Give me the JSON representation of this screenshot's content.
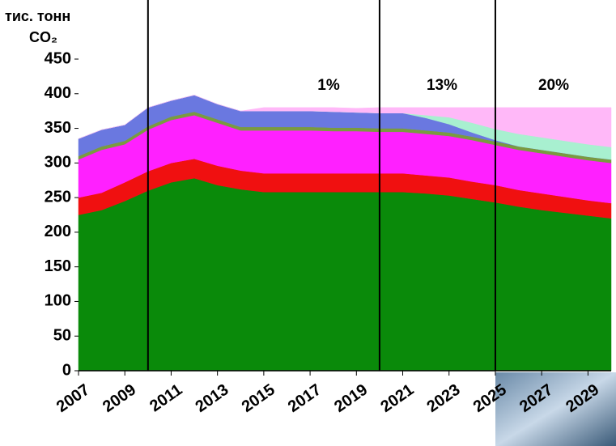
{
  "chart_data": {
    "type": "stacked_area",
    "y_label": [
      "тис. тонн",
      "CO₂"
    ],
    "x": [
      2007,
      2008,
      2009,
      2010,
      2011,
      2012,
      2013,
      2014,
      2015,
      2016,
      2017,
      2018,
      2019,
      2020,
      2021,
      2022,
      2023,
      2024,
      2025,
      2026,
      2027,
      2028,
      2029,
      2030
    ],
    "xlim": [
      2007,
      2030
    ],
    "xticks": [
      2007,
      2009,
      2011,
      2013,
      2015,
      2017,
      2019,
      2021,
      2023,
      2025,
      2027,
      2029
    ],
    "ylim": [
      0,
      450
    ],
    "yticks": [
      0,
      50,
      100,
      150,
      200,
      250,
      300,
      350,
      400,
      450
    ],
    "markers": [
      2010,
      2020,
      2025
    ],
    "annotations": [
      "1%",
      "13%",
      "20%"
    ],
    "series": [
      {
        "color": "#0a8a0a",
        "values": [
          225,
          232,
          245,
          260,
          272,
          278,
          268,
          262,
          258,
          258,
          258,
          258,
          258,
          258,
          258,
          256,
          253,
          248,
          243,
          237,
          232,
          228,
          224,
          220
        ]
      },
      {
        "color": "#f01010",
        "values": [
          25,
          25,
          27,
          28,
          28,
          28,
          28,
          27,
          27,
          27,
          27,
          27,
          27,
          27,
          27,
          26,
          26,
          25,
          25,
          24,
          24,
          23,
          22,
          22
        ]
      },
      {
        "color": "#ff20ff",
        "values": [
          55,
          62,
          55,
          60,
          62,
          63,
          62,
          58,
          62,
          62,
          62,
          61,
          61,
          60,
          60,
          60,
          60,
          60,
          58,
          58,
          58,
          58,
          58,
          58
        ]
      },
      {
        "color": "#7a9a40",
        "values": [
          5,
          5,
          5,
          5,
          5,
          5,
          5,
          5,
          5,
          5,
          5,
          5,
          5,
          5,
          5,
          5,
          5,
          5,
          5,
          5,
          5,
          5,
          5,
          5
        ]
      },
      {
        "color": "#6a78e0",
        "values": [
          25,
          24,
          23,
          27,
          23,
          24,
          22,
          23,
          23,
          23,
          23,
          23,
          22,
          22,
          22,
          18,
          12,
          6,
          2,
          0,
          0,
          0,
          0,
          0
        ]
      },
      {
        "color": "#a8f0d0",
        "values": [
          0,
          0,
          0,
          0,
          0,
          0,
          0,
          0,
          0,
          0,
          0,
          0,
          0,
          0,
          0,
          4,
          10,
          14,
          16,
          18,
          18,
          18,
          18,
          18
        ]
      },
      {
        "color": "#ffb8f8",
        "values": [
          0,
          0,
          0,
          0,
          0,
          0,
          0,
          0,
          5,
          5,
          5,
          6,
          6,
          8,
          8,
          11,
          14,
          22,
          31,
          38,
          43,
          48,
          53,
          57
        ]
      }
    ]
  }
}
